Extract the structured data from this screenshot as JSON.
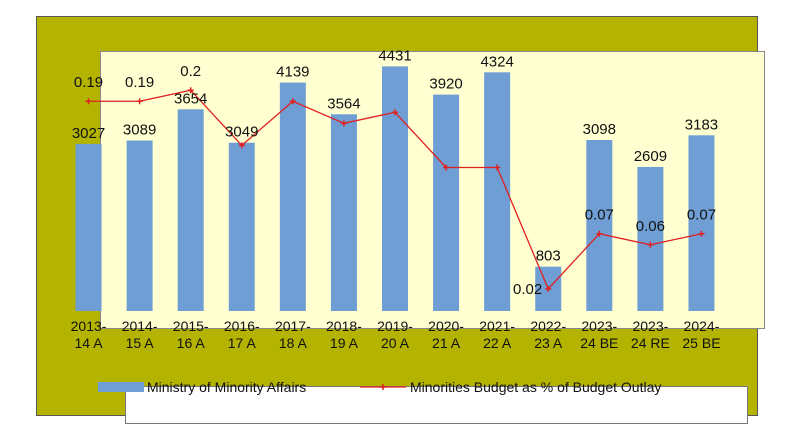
{
  "chart_data": {
    "type": "bar",
    "categories": [
      [
        "2013-",
        "14 A"
      ],
      [
        "2014-",
        "15 A"
      ],
      [
        "2015-",
        "16 A"
      ],
      [
        "2016-",
        "17 A"
      ],
      [
        "2017-",
        "18 A"
      ],
      [
        "2018-",
        "19 A"
      ],
      [
        "2019-",
        "20 A"
      ],
      [
        "2020-",
        "21 A"
      ],
      [
        "2021-",
        "22 A"
      ],
      [
        "2022-",
        "23 A"
      ],
      [
        "2023-",
        "24 BE"
      ],
      [
        "2023-",
        "24 RE"
      ],
      [
        "2024-",
        "25 BE"
      ]
    ],
    "series": [
      {
        "name": "Ministry of Minority Affairs",
        "type": "bar",
        "color": "#6f9ed4",
        "values": [
          3027,
          3089,
          3654,
          3049,
          4139,
          3564,
          4431,
          3920,
          4324,
          803,
          3098,
          2609,
          3183
        ],
        "labels": [
          "3027",
          "3089",
          "3654",
          "3049",
          "4139",
          "3564",
          "4431",
          "3920",
          "4324",
          "803",
          "3098",
          "2609",
          "3183"
        ]
      },
      {
        "name": "Minorities Budget as % of Budget Outlay",
        "type": "line",
        "color": "#e02020",
        "values": [
          0.19,
          0.19,
          0.2,
          0.15,
          0.19,
          0.17,
          0.18,
          0.13,
          0.13,
          0.02,
          0.07,
          0.06,
          0.07
        ],
        "labels": [
          "0.19",
          "0.19",
          "0.2",
          "",
          "",
          "",
          "",
          "",
          "",
          "0.02",
          "0.07",
          "0.06",
          "0.07"
        ]
      }
    ],
    "bar_ylim": [
      0,
      5000
    ],
    "line_ylim": [
      0,
      0.25
    ],
    "legend_position": "bottom",
    "grid": false
  }
}
